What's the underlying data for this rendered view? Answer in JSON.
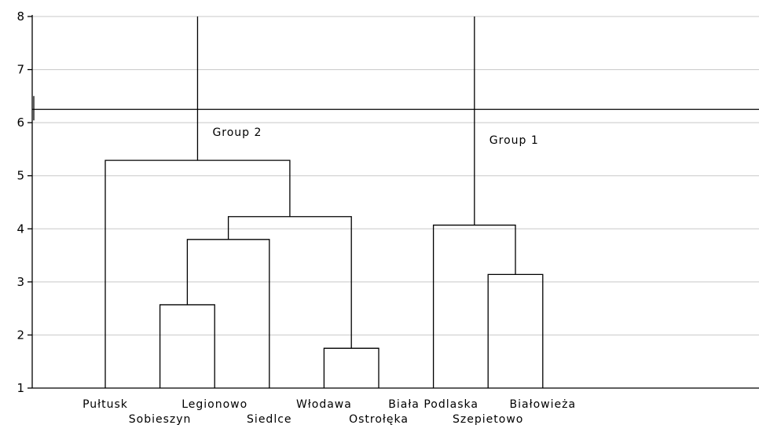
{
  "chart_data": {
    "type": "dendrogram",
    "ylim": [
      1,
      8
    ],
    "yticks": [
      "1",
      "2",
      "3",
      "4",
      "5",
      "6",
      "7",
      "8"
    ],
    "grid": true,
    "leaves": [
      {
        "label": "Pułtusk",
        "row": 0
      },
      {
        "label": "Sobieszyn",
        "row": 1
      },
      {
        "label": "Legionowo",
        "row": 0
      },
      {
        "label": "Siedlce",
        "row": 1
      },
      {
        "label": "Włodawa",
        "row": 0
      },
      {
        "label": "Ostrołęka",
        "row": 1
      },
      {
        "label": "Biała Podlaska",
        "row": 0
      },
      {
        "label": "Szepietowo",
        "row": 1
      },
      {
        "label": "Białowieża",
        "row": 0
      }
    ],
    "merges": [
      {
        "left": "L1",
        "right": "L2",
        "height": 2.57
      },
      {
        "left": "L4",
        "right": "L5",
        "height": 1.75
      },
      {
        "left": "L7",
        "right": "L8",
        "height": 3.14
      },
      {
        "left": "M0",
        "right": "L3",
        "height": 3.8
      },
      {
        "left": "L6",
        "right": "M2",
        "height": 4.07
      },
      {
        "left": "M3",
        "right": "M1",
        "height": 4.23
      },
      {
        "left": "L0",
        "right": "M5",
        "height": 5.29
      },
      {
        "left": "M6",
        "right": "TOP",
        "height": 8.0
      },
      {
        "left": "M4",
        "right": "TOP",
        "height": 8.0
      }
    ],
    "cut_height": 6.25,
    "annotations": [
      {
        "text": "Group 2",
        "cluster": "M6",
        "height": 5.75
      },
      {
        "text": "Group 1",
        "cluster": "M4",
        "height": 5.6
      }
    ]
  }
}
